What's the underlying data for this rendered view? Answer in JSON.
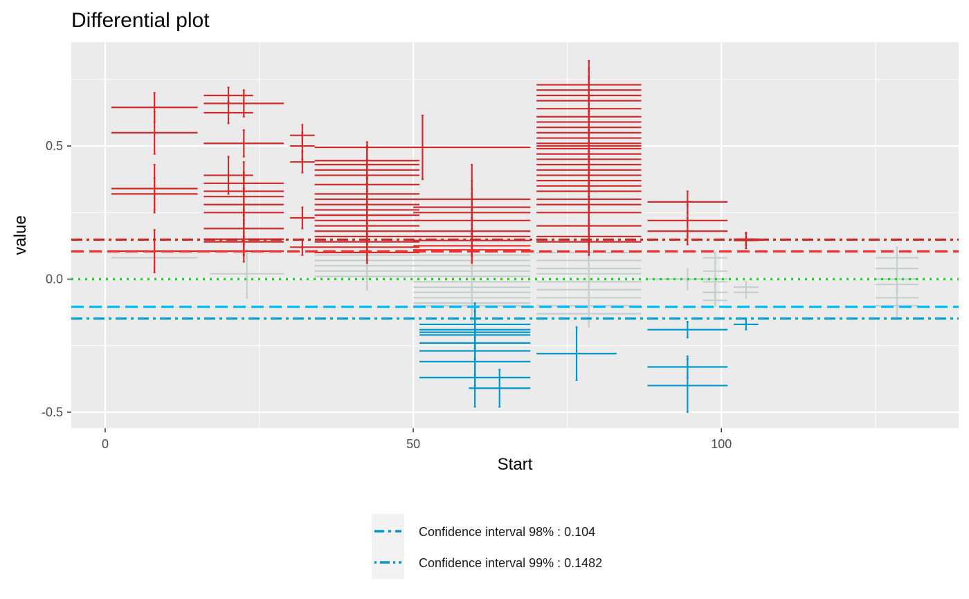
{
  "chart_data": {
    "type": "scatter",
    "title": "Differential plot",
    "xlabel": "Start",
    "ylabel": "value",
    "xlim": [
      -5.5,
      138.5
    ],
    "ylim": [
      -0.56,
      0.89
    ],
    "x_ticks": [
      0,
      50,
      100
    ],
    "y_ticks": [
      -0.5,
      0.0,
      0.5
    ],
    "x_minor": [
      25,
      75,
      125
    ],
    "y_minor": [
      -0.25,
      0.25,
      0.75
    ],
    "grid": true,
    "legend_position": "bottom",
    "colors": {
      "panel": "#ebebeb",
      "grid": "#ffffff",
      "significant_pos": "#d12a2a",
      "significant_pos_light": "#f03030",
      "significant_neg": "#0097d0",
      "insignificant": "#c5cfcf",
      "zero_line": "#00e600",
      "ci98_neg": "#00bfff",
      "ci99_neg": "#00a0d6",
      "ci98_pos": "#ee3030",
      "ci99_pos": "#c82828"
    },
    "reference_lines": [
      {
        "y": 0.1482,
        "style": "dashdot",
        "color_key": "ci99_pos"
      },
      {
        "y": 0.104,
        "style": "dashed",
        "color_key": "ci98_pos"
      },
      {
        "y": 0.0,
        "style": "dotted",
        "color_key": "zero_line"
      },
      {
        "y": -0.104,
        "style": "dashed",
        "color_key": "ci98_neg"
      },
      {
        "y": -0.1482,
        "style": "dashdot",
        "color_key": "ci99_neg"
      }
    ],
    "legend": [
      {
        "label": "Confidence interval 98% : 0.104",
        "style": "dashed"
      },
      {
        "label": "Confidence interval 99% : 0.1482",
        "style": "dashdot"
      }
    ],
    "point_fields": [
      "x_start",
      "x_end",
      "value",
      "error",
      "class"
    ],
    "points": [
      [
        1,
        15,
        0.645,
        0.055,
        "pos"
      ],
      [
        1,
        15,
        0.55,
        0.08,
        "pos"
      ],
      [
        1,
        15,
        0.34,
        0.09,
        "pos"
      ],
      [
        1,
        15,
        0.32,
        0.06,
        "pos"
      ],
      [
        1,
        15,
        0.105,
        0.08,
        "pos"
      ],
      [
        1,
        15,
        0.08,
        0.05,
        "ns"
      ],
      [
        16,
        24,
        0.69,
        0.03,
        "pos"
      ],
      [
        16,
        29,
        0.66,
        0.05,
        "pos"
      ],
      [
        16,
        24,
        0.625,
        0.04,
        "pos"
      ],
      [
        16,
        29,
        0.51,
        0.05,
        "pos"
      ],
      [
        16,
        24,
        0.39,
        0.07,
        "pos"
      ],
      [
        16,
        29,
        0.36,
        0.08,
        "pos"
      ],
      [
        16,
        29,
        0.33,
        0.07,
        "pos"
      ],
      [
        16,
        29,
        0.31,
        0.07,
        "pos"
      ],
      [
        16,
        29,
        0.28,
        0.06,
        "pos"
      ],
      [
        16,
        29,
        0.25,
        0.09,
        "pos"
      ],
      [
        16,
        29,
        0.19,
        0.06,
        "pos"
      ],
      [
        16,
        29,
        0.15,
        0.06,
        "pos"
      ],
      [
        16,
        29,
        0.14,
        0.05,
        "pos"
      ],
      [
        16,
        29,
        0.105,
        0.04,
        "pos"
      ],
      [
        17,
        29,
        0.02,
        0.09,
        "ns"
      ],
      [
        30,
        34,
        0.54,
        0.04,
        "pos"
      ],
      [
        30,
        34,
        0.5,
        0.05,
        "pos"
      ],
      [
        30,
        34,
        0.44,
        0.04,
        "pos"
      ],
      [
        30,
        34,
        0.23,
        0.04,
        "pos"
      ],
      [
        30,
        34,
        0.12,
        0.03,
        "pos"
      ],
      [
        34,
        51,
        0.445,
        0.07,
        "pos"
      ],
      [
        34,
        51,
        0.43,
        0.07,
        "pos"
      ],
      [
        34,
        51,
        0.41,
        0.08,
        "pos"
      ],
      [
        34,
        51,
        0.39,
        0.06,
        "pos"
      ],
      [
        34,
        51,
        0.355,
        0.07,
        "pos"
      ],
      [
        34,
        51,
        0.32,
        0.06,
        "pos"
      ],
      [
        34,
        51,
        0.3,
        0.06,
        "pos"
      ],
      [
        34,
        51,
        0.28,
        0.07,
        "pos"
      ],
      [
        34,
        51,
        0.26,
        0.08,
        "pos"
      ],
      [
        34,
        51,
        0.24,
        0.07,
        "pos"
      ],
      [
        34,
        51,
        0.22,
        0.06,
        "pos"
      ],
      [
        34,
        51,
        0.2,
        0.07,
        "pos"
      ],
      [
        34,
        51,
        0.18,
        0.06,
        "pos"
      ],
      [
        34,
        51,
        0.16,
        0.05,
        "pos"
      ],
      [
        34,
        51,
        0.14,
        0.05,
        "pos"
      ],
      [
        34,
        51,
        0.12,
        0.05,
        "pos"
      ],
      [
        34,
        51,
        0.1,
        0.04,
        "pos"
      ],
      [
        34,
        51,
        0.09,
        0.06,
        "ns"
      ],
      [
        34,
        51,
        0.07,
        0.07,
        "ns"
      ],
      [
        34,
        51,
        0.05,
        0.08,
        "ns"
      ],
      [
        34,
        51,
        0.03,
        0.06,
        "ns"
      ],
      [
        34,
        51,
        0.01,
        0.05,
        "ns"
      ],
      [
        34,
        69,
        0.495,
        0.12,
        "pos"
      ],
      [
        50,
        69,
        0.3,
        0.13,
        "pos"
      ],
      [
        50,
        69,
        0.27,
        0.1,
        "pos"
      ],
      [
        50,
        69,
        0.25,
        0.09,
        "pos"
      ],
      [
        50,
        69,
        0.22,
        0.1,
        "pos"
      ],
      [
        50,
        69,
        0.18,
        0.08,
        "pos"
      ],
      [
        50,
        69,
        0.16,
        0.07,
        "pos"
      ],
      [
        50,
        69,
        0.145,
        0.06,
        "pos"
      ],
      [
        50,
        69,
        0.125,
        0.06,
        "pos_light"
      ],
      [
        50,
        69,
        0.11,
        0.05,
        "pos_light"
      ],
      [
        50,
        69,
        0.09,
        0.06,
        "ns"
      ],
      [
        50,
        69,
        0.07,
        0.07,
        "ns"
      ],
      [
        50,
        69,
        0.05,
        0.05,
        "ns"
      ],
      [
        50,
        69,
        0.03,
        0.06,
        "ns"
      ],
      [
        50,
        69,
        0.01,
        0.05,
        "ns"
      ],
      [
        50,
        69,
        -0.01,
        0.05,
        "ns"
      ],
      [
        50,
        69,
        -0.03,
        0.06,
        "ns"
      ],
      [
        50,
        69,
        -0.05,
        0.05,
        "ns"
      ],
      [
        50,
        69,
        -0.07,
        0.06,
        "ns"
      ],
      [
        50,
        69,
        -0.09,
        0.07,
        "ns"
      ],
      [
        50,
        69,
        -0.1,
        0.05,
        "ns"
      ],
      [
        51,
        69,
        -0.17,
        0.08,
        "neg"
      ],
      [
        51,
        69,
        -0.19,
        0.07,
        "neg"
      ],
      [
        51,
        69,
        -0.2,
        0.1,
        "neg"
      ],
      [
        51,
        69,
        -0.21,
        0.09,
        "neg"
      ],
      [
        51,
        69,
        -0.24,
        0.12,
        "neg"
      ],
      [
        51,
        69,
        -0.27,
        0.1,
        "neg"
      ],
      [
        51,
        69,
        -0.31,
        0.09,
        "neg"
      ],
      [
        51,
        69,
        -0.37,
        0.11,
        "neg"
      ],
      [
        59,
        69,
        -0.41,
        0.07,
        "neg"
      ],
      [
        70,
        87,
        0.73,
        0.09,
        "pos"
      ],
      [
        70,
        87,
        0.71,
        0.08,
        "pos"
      ],
      [
        70,
        87,
        0.69,
        0.07,
        "pos"
      ],
      [
        70,
        87,
        0.67,
        0.08,
        "pos"
      ],
      [
        70,
        87,
        0.64,
        0.09,
        "pos"
      ],
      [
        70,
        87,
        0.61,
        0.08,
        "pos"
      ],
      [
        70,
        87,
        0.59,
        0.09,
        "pos"
      ],
      [
        70,
        87,
        0.57,
        0.07,
        "pos"
      ],
      [
        70,
        87,
        0.55,
        0.08,
        "pos"
      ],
      [
        70,
        87,
        0.53,
        0.07,
        "pos"
      ],
      [
        70,
        87,
        0.51,
        0.08,
        "pos"
      ],
      [
        70,
        87,
        0.5,
        0.06,
        "pos"
      ],
      [
        70,
        87,
        0.49,
        0.07,
        "pos"
      ],
      [
        70,
        87,
        0.47,
        0.08,
        "pos"
      ],
      [
        70,
        87,
        0.45,
        0.09,
        "pos"
      ],
      [
        70,
        87,
        0.43,
        0.08,
        "pos"
      ],
      [
        70,
        87,
        0.41,
        0.07,
        "pos"
      ],
      [
        70,
        87,
        0.39,
        0.08,
        "pos"
      ],
      [
        70,
        87,
        0.37,
        0.09,
        "pos"
      ],
      [
        70,
        87,
        0.35,
        0.08,
        "pos"
      ],
      [
        70,
        87,
        0.33,
        0.07,
        "pos"
      ],
      [
        70,
        87,
        0.3,
        0.09,
        "pos"
      ],
      [
        70,
        87,
        0.28,
        0.08,
        "pos"
      ],
      [
        70,
        87,
        0.25,
        0.1,
        "pos"
      ],
      [
        70,
        87,
        0.2,
        0.07,
        "pos"
      ],
      [
        70,
        87,
        0.16,
        0.06,
        "pos"
      ],
      [
        70,
        87,
        0.14,
        0.05,
        "pos"
      ],
      [
        70,
        87,
        0.1,
        0.05,
        "ns"
      ],
      [
        70,
        87,
        0.07,
        0.06,
        "ns"
      ],
      [
        70,
        87,
        0.04,
        0.05,
        "ns"
      ],
      [
        70,
        87,
        0.02,
        0.06,
        "ns"
      ],
      [
        70,
        87,
        -0.01,
        0.05,
        "ns"
      ],
      [
        70,
        87,
        -0.04,
        0.06,
        "ns"
      ],
      [
        70,
        87,
        -0.07,
        0.05,
        "ns"
      ],
      [
        70,
        87,
        -0.1,
        0.06,
        "ns"
      ],
      [
        70,
        87,
        -0.13,
        0.05,
        "ns"
      ],
      [
        70,
        83,
        -0.28,
        0.1,
        "neg"
      ],
      [
        88,
        101,
        0.29,
        0.04,
        "pos"
      ],
      [
        88,
        101,
        0.22,
        0.06,
        "pos"
      ],
      [
        88,
        101,
        0.18,
        0.05,
        "pos"
      ],
      [
        88,
        101,
        -0.19,
        0.03,
        "neg"
      ],
      [
        88,
        101,
        -0.33,
        0.04,
        "neg"
      ],
      [
        88,
        101,
        -0.4,
        0.1,
        "neg"
      ],
      [
        88,
        101,
        0.0,
        0.04,
        "ns"
      ],
      [
        97,
        101,
        0.08,
        0.02,
        "ns"
      ],
      [
        97,
        101,
        0.03,
        0.03,
        "ns"
      ],
      [
        97,
        101,
        -0.01,
        0.02,
        "ns"
      ],
      [
        97,
        101,
        -0.05,
        0.03,
        "ns"
      ],
      [
        97,
        101,
        -0.08,
        0.02,
        "ns"
      ],
      [
        102,
        106,
        0.15,
        0.02,
        "pos"
      ],
      [
        102,
        106,
        0.145,
        0.03,
        "pos"
      ],
      [
        102,
        106,
        -0.03,
        0.02,
        "ns"
      ],
      [
        102,
        106,
        -0.05,
        0.02,
        "ns"
      ],
      [
        102,
        106,
        -0.17,
        0.02,
        "neg"
      ],
      [
        125,
        132,
        0.08,
        0.04,
        "ns"
      ],
      [
        125,
        132,
        0.04,
        0.05,
        "ns"
      ],
      [
        125,
        132,
        0.0,
        0.04,
        "ns"
      ],
      [
        125,
        132,
        -0.02,
        0.05,
        "ns"
      ],
      [
        125,
        132,
        -0.07,
        0.04,
        "ns"
      ],
      [
        125,
        132,
        -0.1,
        0.05,
        "ns"
      ]
    ]
  }
}
